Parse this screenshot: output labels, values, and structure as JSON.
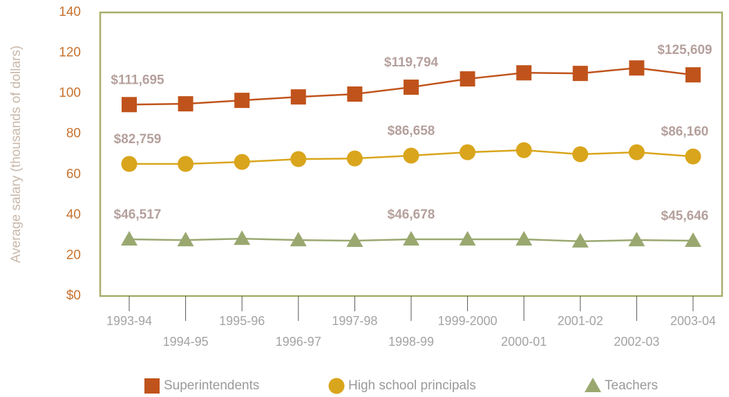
{
  "chart_data": {
    "type": "line",
    "y_label": "Average salary (thousands of dollars)",
    "categories": [
      "1993-94",
      "1994-95",
      "1995-96",
      "1996-97",
      "1997-98",
      "1998-99",
      "1999-2000",
      "2000-01",
      "2001-02",
      "2002-03",
      "2003-04"
    ],
    "ylim": [
      0,
      140
    ],
    "yticks": [
      {
        "value": 0,
        "label": "$0"
      },
      20,
      40,
      60,
      80,
      100,
      120,
      140
    ],
    "legend": "bottom",
    "series": [
      {
        "name": "Superintendents",
        "color": "#c0531b",
        "marker": "square",
        "values": [
          94.5,
          94.9,
          96.6,
          98.3,
          99.7,
          103.1,
          107.2,
          110.2,
          109.9,
          112.6,
          109.2
        ],
        "annotations": [
          "$111,695",
          null,
          null,
          null,
          null,
          "$119,794",
          null,
          null,
          null,
          null,
          "$125,609"
        ]
      },
      {
        "name": "High school principals",
        "color": "#d9a51c",
        "marker": "circle",
        "values": [
          65.2,
          65.2,
          66.2,
          67.6,
          67.9,
          69.3,
          71.0,
          72.0,
          70.0,
          71.0,
          68.9
        ],
        "annotations": [
          "$82,759",
          null,
          null,
          null,
          null,
          "$86,658",
          null,
          null,
          null,
          null,
          "$86,160"
        ]
      },
      {
        "name": "Teachers",
        "color": "#9aa870",
        "marker": "triangle",
        "values": [
          28.0,
          27.6,
          28.3,
          27.6,
          27.3,
          28.0,
          28.0,
          28.0,
          27.0,
          27.6,
          27.3
        ],
        "annotations": [
          "$46,517",
          null,
          null,
          null,
          null,
          "$46,678",
          null,
          null,
          null,
          null,
          "$45,646"
        ]
      }
    ]
  }
}
